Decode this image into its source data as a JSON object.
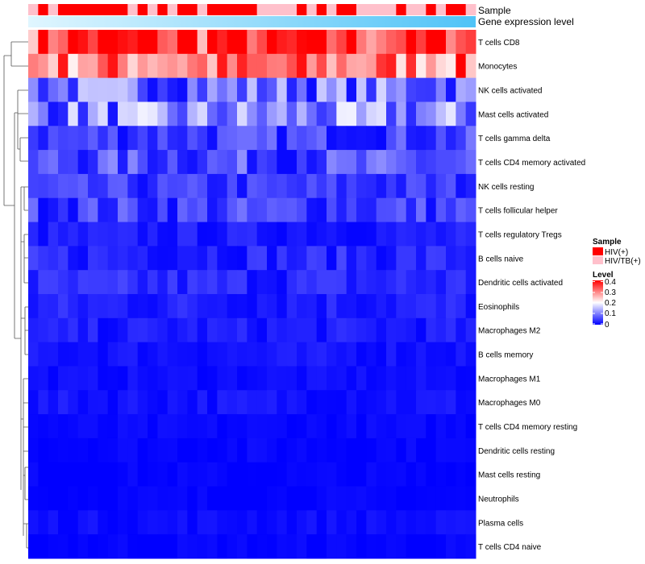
{
  "chart_data": {
    "type": "heatmap",
    "annotations": {
      "sample_label": "Sample",
      "expression_label": "Gene expression level"
    },
    "rows": [
      "T cells CD8",
      "Monocytes",
      "NK cells activated",
      "Mast cells activated",
      "T cells gamma delta",
      "T cells CD4 memory activated",
      "NK cells resting",
      "T cells follicular helper",
      "T cells regulatory  Tregs",
      "B cells naive",
      "Dendritic cells activated",
      "Eosinophils",
      "Macrophages M2",
      "B cells memory",
      "Macrophages M1",
      "Macrophages M0",
      "T cells CD4 memory resting",
      "Dendritic cells resting",
      "Mast cells resting",
      "Neutrophils",
      "Plasma cells",
      "T cells CD4 naive"
    ],
    "row_levels": [
      0.34,
      0.3,
      0.09,
      0.1,
      0.05,
      0.06,
      0.04,
      0.05,
      0.02,
      0.03,
      0.03,
      0.025,
      0.02,
      0.015,
      0.01,
      0.015,
      0.005,
      0.005,
      0.002,
      0.002,
      0.01,
      0.003
    ],
    "sample_groups": [
      "HIV/TB(+)",
      "HIV(+)",
      "HIV/TB(+)",
      "HIV(+)",
      "HIV(+)",
      "HIV(+)",
      "HIV(+)",
      "HIV(+)",
      "HIV(+)",
      "HIV(+)",
      "HIV/TB(+)",
      "HIV(+)",
      "HIV/TB(+)",
      "HIV(+)",
      "HIV/TB(+)",
      "HIV(+)",
      "HIV(+)",
      "HIV/TB(+)",
      "HIV(+)",
      "HIV(+)",
      "HIV(+)",
      "HIV(+)",
      "HIV(+)",
      "HIV/TB(+)",
      "HIV/TB(+)",
      "HIV/TB(+)",
      "HIV/TB(+)",
      "HIV(+)",
      "HIV/TB(+)",
      "HIV(+)",
      "HIV/TB(+)",
      "HIV(+)",
      "HIV(+)",
      "HIV/TB(+)",
      "HIV/TB(+)",
      "HIV/TB(+)",
      "HIV/TB(+)",
      "HIV(+)",
      "HIV/TB(+)",
      "HIV/TB(+)",
      "HIV(+)",
      "HIV/TB(+)",
      "HIV(+)",
      "HIV(+)",
      "HIV/TB(+)"
    ],
    "legend": {
      "sample_title": "Sample",
      "groups": [
        {
          "name": "HIV(+)",
          "color": "#ff0000"
        },
        {
          "name": "HIV/TB(+)",
          "color": "#ffc0cb"
        }
      ],
      "level_title": "Level",
      "level_ticks": [
        "0.4",
        "0.3",
        "0.2",
        "0.1",
        "0"
      ],
      "level_range": [
        0,
        0.4
      ]
    },
    "colors": {
      "low": "#0000ff",
      "mid": "#ffffff",
      "high": "#ff0000",
      "expr_light": "#e0f6ff",
      "expr_dark": "#4fc3f7"
    }
  }
}
